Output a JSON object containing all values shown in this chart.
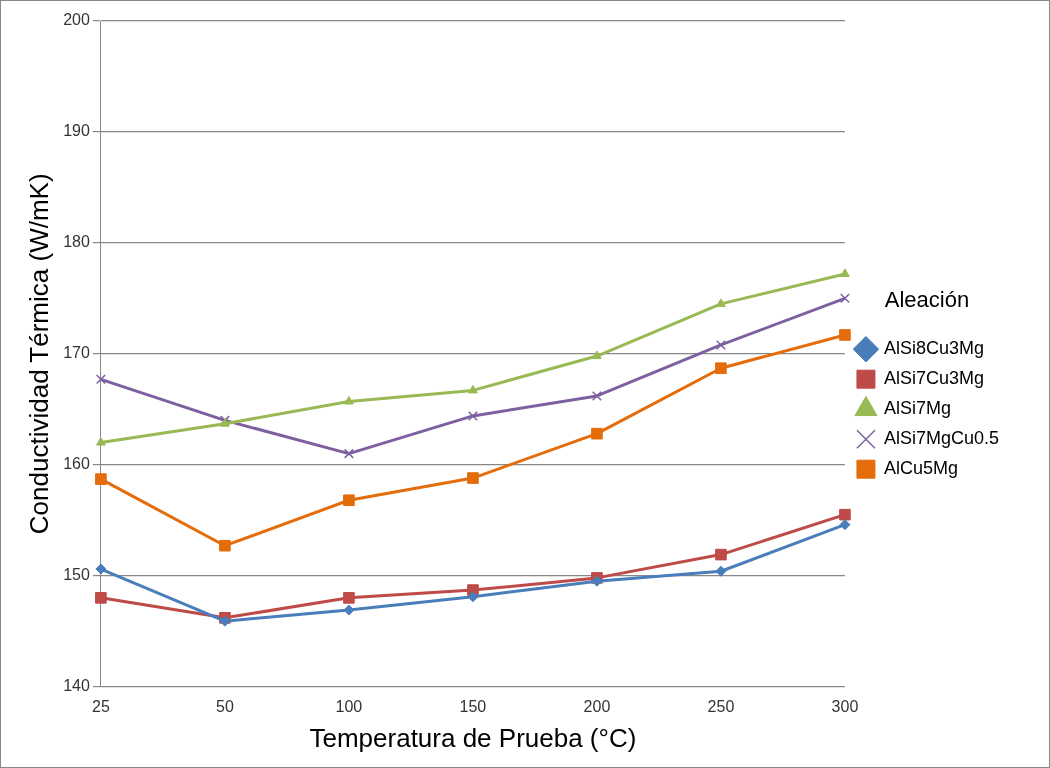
{
  "chart_data": {
    "type": "line",
    "xlabel": "Temperatura de Prueba (°C)",
    "ylabel": "Conductividad Térmica (W/mK)",
    "legend_title": "Aleación",
    "legend": "right",
    "categories": [
      "25",
      "50",
      "100",
      "150",
      "200",
      "250",
      "300"
    ],
    "ylim": [
      140,
      200
    ],
    "yticks": [
      140,
      150,
      160,
      170,
      180,
      190,
      200
    ],
    "grid": "y",
    "series": [
      {
        "name": "AlSi8Cu3Mg",
        "color": "#4a7ebb",
        "marker": "diamond",
        "values": [
          150.6,
          145.9,
          146.9,
          148.1,
          149.5,
          150.4,
          154.6
        ]
      },
      {
        "name": "AlSi7Cu3Mg",
        "color": "#be4b48",
        "marker": "square",
        "values": [
          148.0,
          146.2,
          148.0,
          148.7,
          149.8,
          151.9,
          155.5
        ]
      },
      {
        "name": "AlSi7Mg",
        "color": "#98b954",
        "marker": "triangle",
        "values": [
          162.0,
          163.7,
          165.7,
          166.7,
          169.8,
          174.5,
          177.2
        ]
      },
      {
        "name": "AlSi7MgCu0.5",
        "color": "#7d60a0",
        "marker": "cross",
        "values": [
          167.7,
          164.0,
          161.0,
          164.4,
          166.2,
          170.8,
          175.0
        ]
      },
      {
        "name": "AlCu5Mg",
        "color": "#e46c0a",
        "marker": "square",
        "values": [
          158.7,
          152.7,
          156.8,
          158.8,
          162.8,
          168.7,
          171.7
        ]
      }
    ]
  }
}
